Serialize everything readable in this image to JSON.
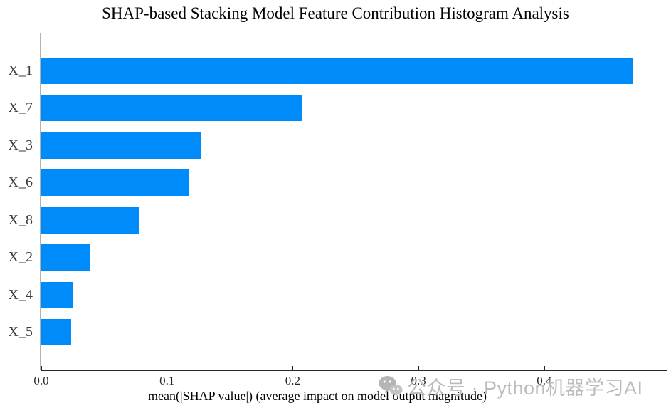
{
  "title": "SHAP-based Stacking Model Feature Contribution Histogram Analysis",
  "chart_data": {
    "type": "bar",
    "orientation": "horizontal",
    "categories": [
      "X_1",
      "X_7",
      "X_3",
      "X_6",
      "X_8",
      "X_2",
      "X_4",
      "X_5"
    ],
    "values": [
      0.47,
      0.207,
      0.127,
      0.117,
      0.078,
      0.039,
      0.025,
      0.024
    ],
    "title": "SHAP-based Stacking Model Feature Contribution Histogram Analysis",
    "xlabel": "mean(|SHAP value|) (average impact on model output magnitude)",
    "ylabel": "",
    "xtick_labels": [
      "0.0",
      "0.1",
      "0.2",
      "0.3",
      "0.4"
    ],
    "xticks": [
      0.0,
      0.1,
      0.2,
      0.3,
      0.4
    ],
    "xlim": [
      0,
      0.498
    ],
    "grid": false,
    "legend_position": null,
    "bar_color": "#008bfa",
    "left_spine_color": "#b2b2b2",
    "bottom_spine_color": "#262626"
  },
  "watermark": {
    "icon": "wechat-icon",
    "text": "公众号 · Python机器学习AI",
    "color": "#bcbcbc"
  }
}
